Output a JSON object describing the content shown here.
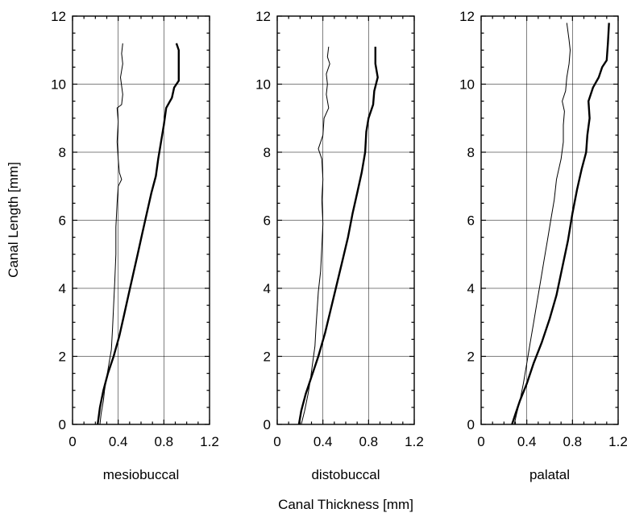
{
  "figure": {
    "ylabel": "Canal Length [mm]",
    "xlabel": "Canal Thickness [mm]"
  },
  "chart_data": [
    {
      "type": "line",
      "panel_label": "mesiobuccal",
      "xlim": [
        0,
        1.2
      ],
      "ylim": [
        0,
        12
      ],
      "x_ticks": [
        "0",
        "0.4",
        "0.8",
        "1.2"
      ],
      "y_ticks": [
        "0",
        "2",
        "4",
        "6",
        "8",
        "10",
        "12"
      ],
      "grid": true,
      "series": [
        {
          "style": "thin",
          "points": [
            [
              0.24,
              0
            ],
            [
              0.25,
              0.3
            ],
            [
              0.27,
              0.7
            ],
            [
              0.28,
              1.0
            ],
            [
              0.3,
              1.4
            ],
            [
              0.32,
              1.8
            ],
            [
              0.34,
              2.2
            ],
            [
              0.35,
              2.8
            ],
            [
              0.36,
              3.5
            ],
            [
              0.37,
              4.2
            ],
            [
              0.38,
              5.0
            ],
            [
              0.38,
              5.8
            ],
            [
              0.39,
              6.5
            ],
            [
              0.4,
              7.0
            ],
            [
              0.43,
              7.2
            ],
            [
              0.41,
              7.4
            ],
            [
              0.4,
              7.8
            ],
            [
              0.39,
              8.3
            ],
            [
              0.4,
              8.9
            ],
            [
              0.39,
              9.3
            ],
            [
              0.43,
              9.4
            ],
            [
              0.44,
              9.7
            ],
            [
              0.42,
              10.2
            ],
            [
              0.44,
              10.6
            ],
            [
              0.43,
              10.9
            ],
            [
              0.44,
              11.2
            ]
          ]
        },
        {
          "style": "thick",
          "points": [
            [
              0.22,
              0
            ],
            [
              0.24,
              0.5
            ],
            [
              0.27,
              1.0
            ],
            [
              0.31,
              1.5
            ],
            [
              0.36,
              2.0
            ],
            [
              0.41,
              2.6
            ],
            [
              0.45,
              3.2
            ],
            [
              0.49,
              3.8
            ],
            [
              0.53,
              4.4
            ],
            [
              0.57,
              5.0
            ],
            [
              0.61,
              5.6
            ],
            [
              0.65,
              6.2
            ],
            [
              0.69,
              6.8
            ],
            [
              0.73,
              7.3
            ],
            [
              0.75,
              7.8
            ],
            [
              0.77,
              8.2
            ],
            [
              0.8,
              8.8
            ],
            [
              0.82,
              9.3
            ],
            [
              0.87,
              9.6
            ],
            [
              0.89,
              9.9
            ],
            [
              0.93,
              10.1
            ],
            [
              0.93,
              10.6
            ],
            [
              0.93,
              11.0
            ],
            [
              0.91,
              11.2
            ]
          ]
        }
      ]
    },
    {
      "type": "line",
      "panel_label": "distobuccal",
      "xlim": [
        0,
        1.2
      ],
      "ylim": [
        0,
        12
      ],
      "x_ticks": [
        "0",
        "0.4",
        "0.8",
        "1.2"
      ],
      "y_ticks": [
        "0",
        "2",
        "4",
        "6",
        "8",
        "10",
        "12"
      ],
      "grid": true,
      "series": [
        {
          "style": "thin",
          "points": [
            [
              0.21,
              0
            ],
            [
              0.24,
              0.4
            ],
            [
              0.27,
              0.9
            ],
            [
              0.29,
              1.3
            ],
            [
              0.31,
              1.8
            ],
            [
              0.33,
              2.3
            ],
            [
              0.34,
              2.9
            ],
            [
              0.35,
              3.4
            ],
            [
              0.36,
              3.9
            ],
            [
              0.38,
              4.5
            ],
            [
              0.39,
              5.2
            ],
            [
              0.4,
              5.9
            ],
            [
              0.39,
              6.6
            ],
            [
              0.4,
              7.2
            ],
            [
              0.39,
              7.8
            ],
            [
              0.36,
              8.1
            ],
            [
              0.4,
              8.5
            ],
            [
              0.41,
              9.0
            ],
            [
              0.45,
              9.3
            ],
            [
              0.43,
              9.7
            ],
            [
              0.44,
              10.0
            ],
            [
              0.43,
              10.3
            ],
            [
              0.46,
              10.6
            ],
            [
              0.44,
              10.8
            ],
            [
              0.45,
              11.1
            ]
          ]
        },
        {
          "style": "thick",
          "points": [
            [
              0.19,
              0
            ],
            [
              0.21,
              0.4
            ],
            [
              0.25,
              0.9
            ],
            [
              0.3,
              1.4
            ],
            [
              0.36,
              2.0
            ],
            [
              0.42,
              2.7
            ],
            [
              0.47,
              3.4
            ],
            [
              0.52,
              4.1
            ],
            [
              0.57,
              4.8
            ],
            [
              0.62,
              5.5
            ],
            [
              0.66,
              6.2
            ],
            [
              0.7,
              6.8
            ],
            [
              0.74,
              7.4
            ],
            [
              0.77,
              8.0
            ],
            [
              0.78,
              8.6
            ],
            [
              0.8,
              9.0
            ],
            [
              0.84,
              9.4
            ],
            [
              0.85,
              9.8
            ],
            [
              0.88,
              10.2
            ],
            [
              0.86,
              10.6
            ],
            [
              0.86,
              11.1
            ]
          ]
        }
      ]
    },
    {
      "type": "line",
      "panel_label": "palatal",
      "xlim": [
        0,
        1.2
      ],
      "ylim": [
        0,
        12
      ],
      "x_ticks": [
        "0",
        "0.4",
        "0.8",
        "1.2"
      ],
      "y_ticks": [
        "0",
        "2",
        "4",
        "6",
        "8",
        "10",
        "12"
      ],
      "grid": true,
      "series": [
        {
          "style": "thin",
          "points": [
            [
              0.29,
              0
            ],
            [
              0.31,
              0.3
            ],
            [
              0.34,
              0.7
            ],
            [
              0.37,
              1.2
            ],
            [
              0.4,
              1.8
            ],
            [
              0.43,
              2.4
            ],
            [
              0.46,
              3.0
            ],
            [
              0.49,
              3.6
            ],
            [
              0.52,
              4.2
            ],
            [
              0.55,
              4.8
            ],
            [
              0.58,
              5.4
            ],
            [
              0.61,
              6.0
            ],
            [
              0.64,
              6.6
            ],
            [
              0.66,
              7.2
            ],
            [
              0.7,
              7.8
            ],
            [
              0.72,
              8.3
            ],
            [
              0.72,
              8.8
            ],
            [
              0.73,
              9.2
            ],
            [
              0.71,
              9.5
            ],
            [
              0.74,
              9.8
            ],
            [
              0.75,
              10.2
            ],
            [
              0.77,
              10.6
            ],
            [
              0.78,
              11.0
            ],
            [
              0.77,
              11.3
            ],
            [
              0.75,
              11.8
            ]
          ]
        },
        {
          "style": "thick",
          "points": [
            [
              0.27,
              0
            ],
            [
              0.3,
              0.3
            ],
            [
              0.34,
              0.7
            ],
            [
              0.4,
              1.2
            ],
            [
              0.46,
              1.8
            ],
            [
              0.53,
              2.4
            ],
            [
              0.6,
              3.1
            ],
            [
              0.66,
              3.8
            ],
            [
              0.71,
              4.6
            ],
            [
              0.76,
              5.4
            ],
            [
              0.8,
              6.2
            ],
            [
              0.84,
              6.9
            ],
            [
              0.88,
              7.5
            ],
            [
              0.92,
              8.0
            ],
            [
              0.93,
              8.5
            ],
            [
              0.95,
              9.0
            ],
            [
              0.94,
              9.5
            ],
            [
              0.98,
              9.9
            ],
            [
              1.03,
              10.2
            ],
            [
              1.06,
              10.5
            ],
            [
              1.1,
              10.7
            ],
            [
              1.11,
              11.2
            ],
            [
              1.12,
              11.8
            ]
          ]
        }
      ]
    }
  ]
}
